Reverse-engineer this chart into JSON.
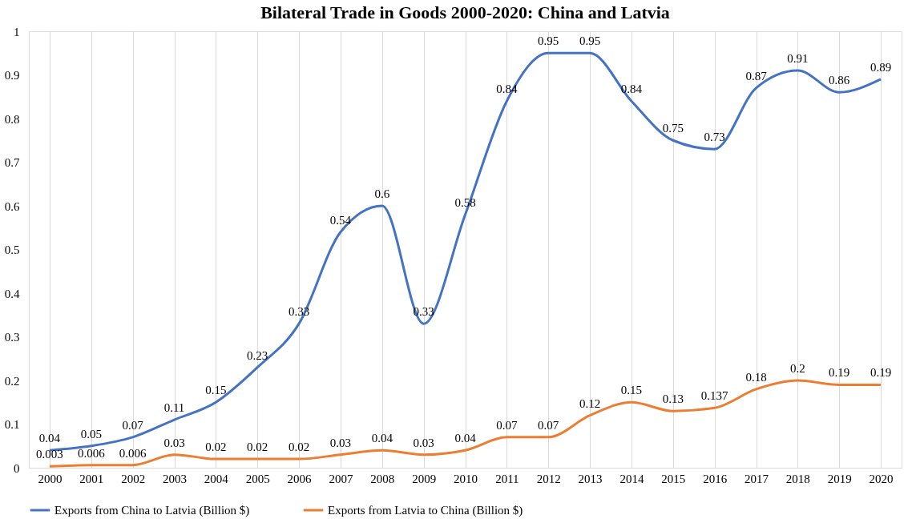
{
  "chart_data": {
    "type": "line",
    "title": "Bilateral Trade in Goods 2000-2020: China and Latvia",
    "categories": [
      "2000",
      "2001",
      "2002",
      "2003",
      "2004",
      "2005",
      "2006",
      "2007",
      "2008",
      "2009",
      "2010",
      "2011",
      "2012",
      "2013",
      "2014",
      "2015",
      "2016",
      "2017",
      "2018",
      "2019",
      "2020"
    ],
    "series": [
      {
        "name": "Exports from China to Latvia (Billion $)",
        "color": "#4472c4",
        "values": [
          0.04,
          0.05,
          0.07,
          0.11,
          0.15,
          0.23,
          0.33,
          0.54,
          0.6,
          0.33,
          0.58,
          0.84,
          0.95,
          0.95,
          0.84,
          0.75,
          0.73,
          0.87,
          0.91,
          0.86,
          0.89
        ]
      },
      {
        "name": "Exports from Latvia to China (Billion $)",
        "color": "#ed7d31",
        "values": [
          0.003,
          0.006,
          0.006,
          0.03,
          0.02,
          0.02,
          0.02,
          0.03,
          0.04,
          0.03,
          0.04,
          0.07,
          0.07,
          0.12,
          0.15,
          0.13,
          0.137,
          0.18,
          0.2,
          0.19,
          0.19
        ]
      }
    ],
    "ylim": [
      0,
      1
    ],
    "yticks": [
      0,
      0.1,
      0.2,
      0.3,
      0.4,
      0.5,
      0.6,
      0.7,
      0.8,
      0.9,
      1
    ],
    "grid": "x",
    "legend": "bottom",
    "data_labels": true,
    "marker": "none",
    "line_style": "solid"
  }
}
